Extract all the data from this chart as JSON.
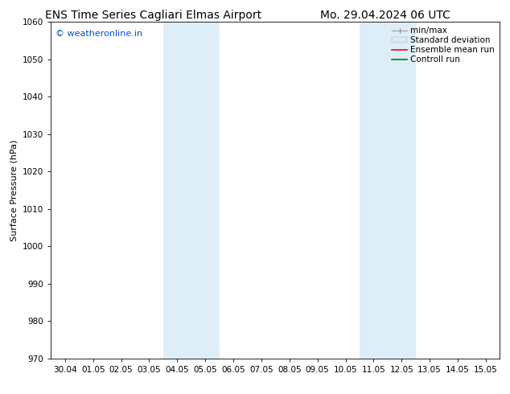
{
  "title_left": "ENS Time Series Cagliari Elmas Airport",
  "title_right": "Mo. 29.04.2024 06 UTC",
  "ylabel": "Surface Pressure (hPa)",
  "ylim": [
    970,
    1060
  ],
  "yticks": [
    970,
    980,
    990,
    1000,
    1010,
    1020,
    1030,
    1040,
    1050,
    1060
  ],
  "xtick_labels": [
    "30.04",
    "01.05",
    "02.05",
    "03.05",
    "04.05",
    "05.05",
    "06.05",
    "07.05",
    "08.05",
    "09.05",
    "10.05",
    "11.05",
    "12.05",
    "13.05",
    "14.05",
    "15.05"
  ],
  "shaded_regions": [
    {
      "xstart": 4,
      "xend": 6,
      "color": "#ddeef8"
    },
    {
      "xstart": 11,
      "xend": 13,
      "color": "#ddeef8"
    }
  ],
  "watermark_text": "© weatheronline.in",
  "watermark_color": "#0055cc",
  "background_color": "#ffffff",
  "grid_color": "#cccccc",
  "spine_color": "#000000",
  "title_fontsize": 10,
  "label_fontsize": 8,
  "tick_fontsize": 7.5,
  "legend_fontsize": 7.5
}
